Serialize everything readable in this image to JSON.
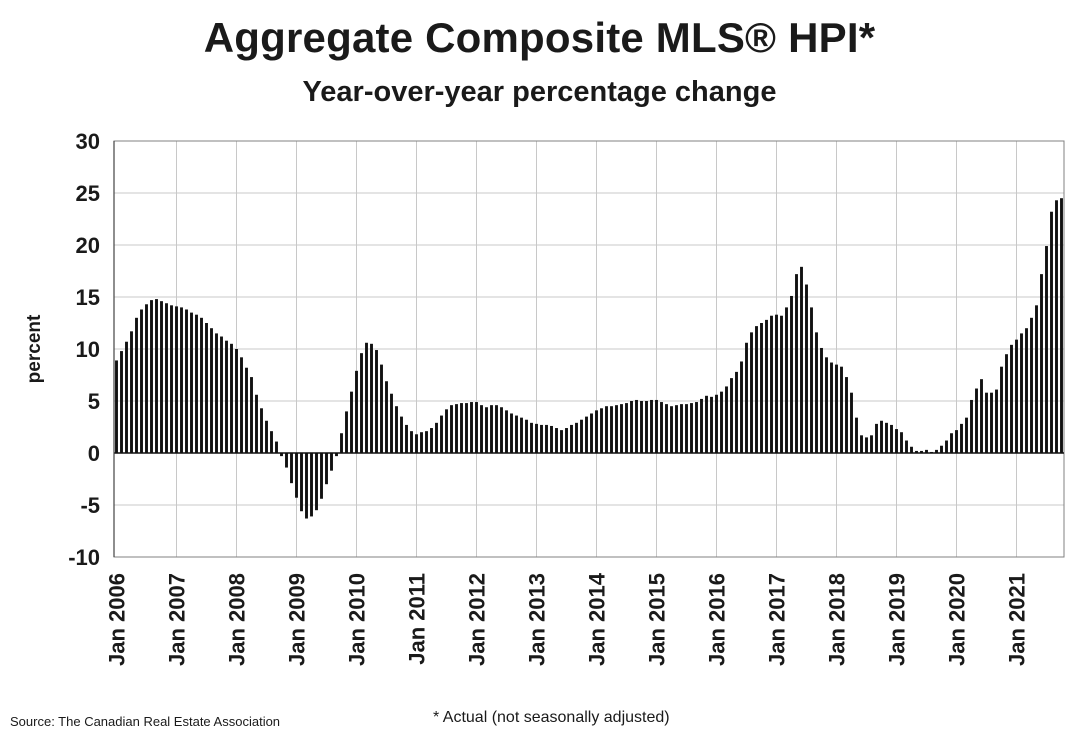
{
  "source": "Source: The Canadian Real Estate Association",
  "note": "* Actual (not seasonally adjusted)",
  "chart_data": {
    "type": "bar",
    "title": "Aggregate Composite MLS® HPI*",
    "subtitle": "Year-over-year percentage change",
    "ylabel": "percent",
    "xlabel": "",
    "ylim": [
      -10,
      30
    ],
    "yticks": [
      30,
      25,
      20,
      15,
      10,
      5,
      0,
      -5,
      -10
    ],
    "grid": true,
    "start": "Jan 2006",
    "xticks": [
      "Jan 2006",
      "Jan 2007",
      "Jan 2008",
      "Jan 2009",
      "Jan 2010",
      "Jan 2011",
      "Jan 2012",
      "Jan 2013",
      "Jan 2014",
      "Jan 2015",
      "Jan 2016",
      "Jan 2017",
      "Jan 2018",
      "Jan 2019",
      "Jan 2020",
      "Jan 2021"
    ],
    "bar_color": "#111111",
    "values": [
      8.9,
      9.8,
      10.7,
      11.7,
      13.0,
      13.8,
      14.3,
      14.7,
      14.8,
      14.6,
      14.4,
      14.2,
      14.1,
      14.0,
      13.8,
      13.5,
      13.3,
      13.0,
      12.5,
      12.0,
      11.5,
      11.2,
      10.8,
      10.5,
      10.0,
      9.2,
      8.2,
      7.3,
      5.6,
      4.3,
      3.1,
      2.1,
      1.1,
      -0.3,
      -1.4,
      -2.9,
      -4.3,
      -5.6,
      -6.3,
      -6.1,
      -5.5,
      -4.4,
      -3.0,
      -1.7,
      -0.3,
      1.9,
      4.0,
      5.9,
      7.9,
      9.6,
      10.6,
      10.5,
      9.9,
      8.5,
      6.9,
      5.7,
      4.5,
      3.5,
      2.7,
      2.1,
      1.8,
      2.0,
      2.1,
      2.4,
      2.9,
      3.6,
      4.2,
      4.6,
      4.7,
      4.8,
      4.8,
      4.9,
      4.9,
      4.6,
      4.4,
      4.6,
      4.6,
      4.4,
      4.1,
      3.8,
      3.6,
      3.4,
      3.2,
      2.9,
      2.8,
      2.7,
      2.7,
      2.6,
      2.4,
      2.2,
      2.4,
      2.7,
      2.9,
      3.2,
      3.5,
      3.8,
      4.1,
      4.3,
      4.5,
      4.5,
      4.6,
      4.7,
      4.8,
      5.0,
      5.1,
      5.0,
      5.0,
      5.1,
      5.1,
      4.9,
      4.7,
      4.5,
      4.6,
      4.7,
      4.7,
      4.8,
      4.9,
      5.2,
      5.5,
      5.4,
      5.6,
      5.9,
      6.4,
      7.2,
      7.8,
      8.8,
      10.6,
      11.6,
      12.2,
      12.5,
      12.8,
      13.2,
      13.3,
      13.2,
      14.0,
      15.1,
      17.2,
      17.9,
      16.2,
      14.0,
      11.6,
      10.1,
      9.2,
      8.7,
      8.5,
      8.3,
      7.3,
      5.8,
      3.4,
      1.7,
      1.5,
      1.7,
      2.8,
      3.1,
      2.9,
      2.7,
      2.3,
      2.0,
      1.2,
      0.6,
      0.2,
      0.2,
      0.3,
      0.1,
      0.3,
      0.7,
      1.2,
      1.9,
      2.2,
      2.8,
      3.4,
      5.1,
      6.2,
      7.1,
      5.8,
      5.8,
      6.1,
      8.3,
      9.5,
      10.4,
      10.9,
      11.5,
      12.0,
      13.0,
      14.2,
      17.2,
      19.9,
      23.2,
      24.3,
      24.5
    ]
  }
}
